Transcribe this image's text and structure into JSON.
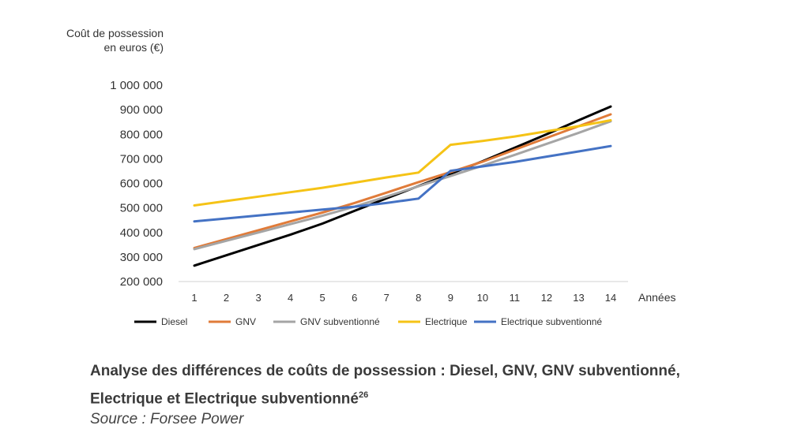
{
  "chart_data": {
    "type": "line",
    "ylabel_line1": "Coût de possession",
    "ylabel_line2": "en euros (€)",
    "xlabel": "Années",
    "x": [
      1,
      2,
      3,
      4,
      5,
      6,
      7,
      8,
      9,
      10,
      11,
      12,
      13,
      14
    ],
    "ylim": [
      200000,
      1000000
    ],
    "yticks": [
      200000,
      300000,
      400000,
      500000,
      600000,
      700000,
      800000,
      900000,
      1000000
    ],
    "ytick_labels": [
      "200 000",
      "300 000",
      "400 000",
      "500 000",
      "600 000",
      "700 000",
      "800 000",
      "900 000",
      "1 000 000"
    ],
    "grid": false,
    "legend_position": "bottom",
    "series": [
      {
        "name": "Diesel",
        "color": "#000000",
        "values": [
          265000,
          307000,
          349000,
          391000,
          436000,
          488000,
          539000,
          589000,
          639000,
          690000,
          745000,
          800000,
          857000,
          913000
        ]
      },
      {
        "name": "GNV",
        "color": "#e07b39",
        "values": [
          337000,
          373000,
          409000,
          445000,
          481000,
          520000,
          562000,
          605000,
          646000,
          688000,
          737000,
          785000,
          833000,
          881000
        ]
      },
      {
        "name": "GNV subventionné",
        "color": "#a5a5a5",
        "values": [
          332000,
          366000,
          400000,
          434000,
          468000,
          505000,
          546000,
          588000,
          630000,
          672000,
          716000,
          761000,
          806000,
          853000
        ]
      },
      {
        "name": "Electrique",
        "color": "#f5c316",
        "values": [
          510000,
          528000,
          546000,
          564000,
          582000,
          603000,
          624000,
          644000,
          757000,
          773000,
          791000,
          812000,
          833000,
          857000
        ]
      },
      {
        "name": "Electrique subventionné",
        "color": "#4472c4",
        "values": [
          445000,
          457000,
          469000,
          481000,
          493000,
          505000,
          520000,
          538000,
          651000,
          669000,
          687000,
          709000,
          730000,
          752000
        ]
      }
    ]
  },
  "caption": {
    "text": "Analyse des différences de coûts de possession : Diesel, GNV, GNV subventionné, Electrique et Electrique subventionné",
    "footnote": "26",
    "source": "Source : Forsee Power"
  }
}
